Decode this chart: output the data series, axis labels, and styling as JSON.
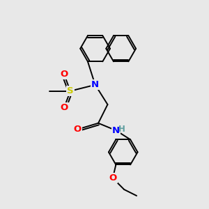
{
  "background_color": "#e8e8e8",
  "bond_color": "#000000",
  "atom_colors": {
    "N": "#0000ff",
    "O": "#ff0000",
    "S": "#cccc00",
    "H_color": "#5f9ea0",
    "C": "#000000"
  },
  "lw": 1.4,
  "font_size": 9.5,
  "xlim": [
    0,
    10
  ],
  "ylim": [
    0,
    10
  ]
}
